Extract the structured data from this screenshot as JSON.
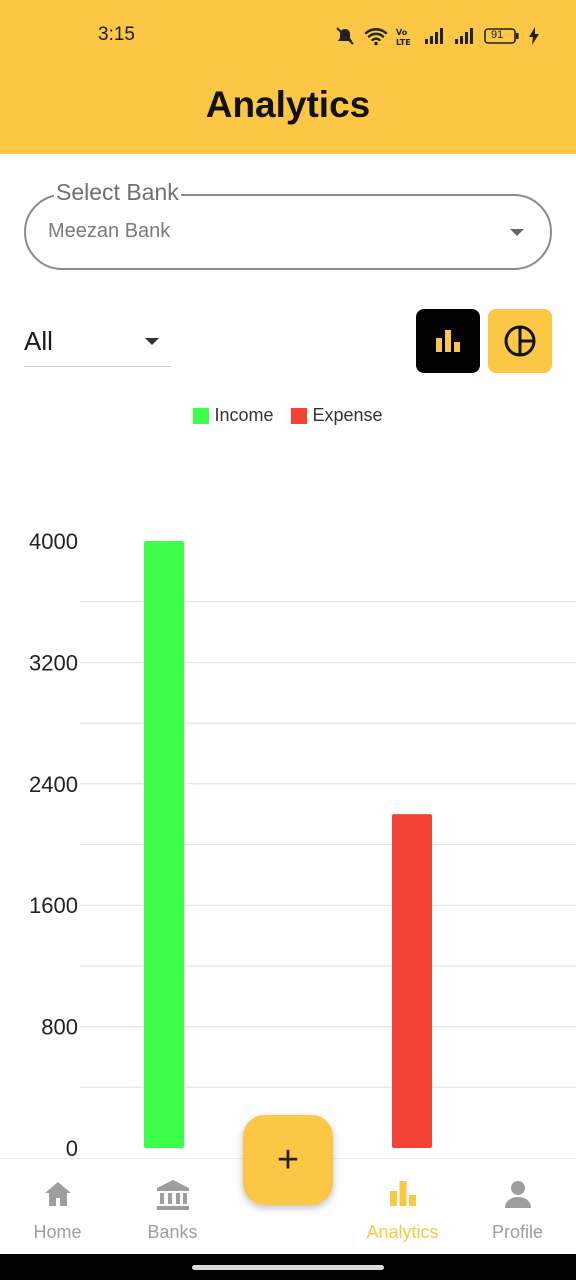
{
  "status_bar": {
    "time": "3:15",
    "battery": "91"
  },
  "header": {
    "title": "Analytics"
  },
  "bank_select": {
    "label": "Select Bank",
    "value": "Meezan Bank"
  },
  "filter": {
    "value": "All"
  },
  "chart_toggle": {
    "bar_icon": "bar-chart-icon",
    "pie_icon": "pie-chart-icon",
    "active": "bar"
  },
  "colors": {
    "accent": "#FCC744",
    "income": "#3DFF47",
    "expense": "#F44336"
  },
  "chart_data": {
    "type": "bar",
    "categories": [
      "Income",
      "Expense"
    ],
    "series": [
      {
        "name": "Income",
        "values": [
          4000,
          null
        ],
        "color": "#3DFF47"
      },
      {
        "name": "Expense",
        "values": [
          null,
          2200
        ],
        "color": "#F44336"
      }
    ],
    "yticks": [
      "4000",
      "3200",
      "2400",
      "1600",
      "800",
      "0"
    ],
    "ylim": [
      0,
      4000
    ],
    "grid": true,
    "legend_position": "top"
  },
  "fab": {
    "label": "+"
  },
  "bottom_nav": {
    "items": [
      {
        "label": "Home",
        "icon": "home-icon"
      },
      {
        "label": "Banks",
        "icon": "bank-icon"
      },
      {
        "label": "Analytics",
        "icon": "analytics-icon",
        "active": true
      },
      {
        "label": "Profile",
        "icon": "profile-icon"
      }
    ]
  }
}
